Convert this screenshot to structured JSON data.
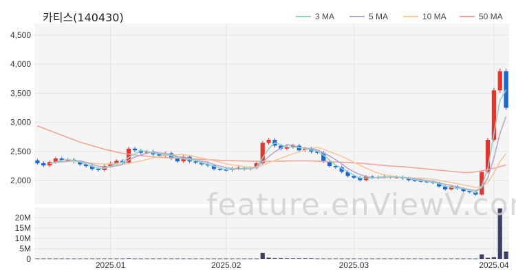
{
  "title": "카티스(140430)",
  "legend": [
    {
      "label": "3 MA",
      "color": "#8fd3c8"
    },
    {
      "label": "5 MA",
      "color": "#b8a5cc"
    },
    {
      "label": "10 MA",
      "color": "#f2c99a"
    },
    {
      "label": "50 MA",
      "color": "#f0a597"
    }
  ],
  "watermark": "feature.enViewV.com",
  "colors": {
    "up": "#e8322c",
    "down": "#1a66d6",
    "volume": "#3d3f66",
    "grid": "#e4e4e4",
    "panel": "#f5f5f5"
  },
  "chart_data": {
    "type": "candlestick",
    "price_axis": {
      "ticks": [
        2000,
        2500,
        3000,
        3500,
        4000,
        4500
      ],
      "tick_labels": [
        "2,000",
        "2,500",
        "3,000",
        "3,500",
        "4,000",
        "4,500"
      ],
      "ylim": [
        1600,
        4700
      ]
    },
    "volume_axis": {
      "ticks": [
        0,
        5,
        10,
        15,
        20
      ],
      "tick_labels": [
        "0",
        "5M",
        "10M",
        "15M",
        "20M"
      ],
      "ylim": [
        0,
        25
      ]
    },
    "x_labels": [
      "2025.01",
      "2025.02",
      "2025.03",
      "2025.04"
    ],
    "x_label_index": [
      12,
      31,
      52,
      75
    ],
    "close": [
      2300,
      2260,
      2320,
      2380,
      2350,
      2360,
      2320,
      2280,
      2250,
      2200,
      2180,
      2250,
      2300,
      2340,
      2310,
      2550,
      2520,
      2480,
      2500,
      2450,
      2430,
      2470,
      2380,
      2330,
      2410,
      2330,
      2310,
      2280,
      2260,
      2200,
      2190,
      2180,
      2210,
      2220,
      2200,
      2220,
      2300,
      2650,
      2700,
      2600,
      2550,
      2580,
      2600,
      2520,
      2550,
      2500,
      2480,
      2330,
      2250,
      2230,
      2150,
      2080,
      2050,
      2010,
      2070,
      2050,
      2060,
      2070,
      2060,
      2060,
      2040,
      2010,
      2000,
      1990,
      1980,
      1960,
      1900,
      1850,
      1900,
      1860,
      1820,
      1800,
      1760,
      2150,
      2700,
      3550,
      3880,
      3250
    ],
    "ma50": [
      2940,
      2900,
      2860,
      2820,
      2780,
      2740,
      2700,
      2660,
      2630,
      2600,
      2570,
      2540,
      2515,
      2490,
      2470,
      2455,
      2440,
      2430,
      2420,
      2410,
      2400,
      2395,
      2390,
      2385,
      2380,
      2375,
      2370,
      2365,
      2360,
      2355,
      2350,
      2345,
      2342,
      2340,
      2337,
      2335,
      2333,
      2333,
      2333,
      2333,
      2335,
      2337,
      2340,
      2340,
      2340,
      2338,
      2335,
      2330,
      2325,
      2320,
      2315,
      2310,
      2305,
      2300,
      2290,
      2280,
      2270,
      2260,
      2250,
      2245,
      2240,
      2230,
      2220,
      2210,
      2200,
      2190,
      2180,
      2170,
      2160,
      2150,
      2140,
      2140,
      2150,
      2170,
      2190,
      2210,
      2240,
      2270
    ],
    "volume": [
      0.2,
      0.2,
      0.2,
      0.2,
      0.2,
      0.2,
      0.2,
      0.2,
      0.2,
      0.2,
      0.2,
      0.2,
      0.2,
      0.2,
      0.2,
      0.3,
      0.2,
      0.2,
      0.2,
      0.2,
      0.2,
      0.2,
      0.2,
      0.2,
      0.2,
      0.2,
      0.2,
      0.2,
      0.2,
      0.2,
      0.2,
      0.2,
      0.2,
      0.2,
      0.2,
      0.2,
      0.2,
      3.0,
      0.7,
      0.4,
      0.4,
      0.3,
      0.3,
      0.3,
      0.3,
      0.3,
      0.2,
      0.2,
      0.2,
      0.2,
      0.2,
      0.2,
      0.2,
      0.2,
      0.2,
      0.2,
      0.2,
      0.2,
      0.2,
      0.2,
      0.2,
      0.2,
      0.2,
      0.2,
      0.2,
      0.2,
      0.2,
      0.2,
      0.2,
      0.2,
      0.2,
      0.2,
      0.2,
      2.2,
      0.6,
      0.9,
      24.5,
      3.6
    ],
    "series": [
      {
        "name": "3 MA"
      },
      {
        "name": "5 MA"
      },
      {
        "name": "10 MA"
      },
      {
        "name": "50 MA"
      }
    ]
  }
}
